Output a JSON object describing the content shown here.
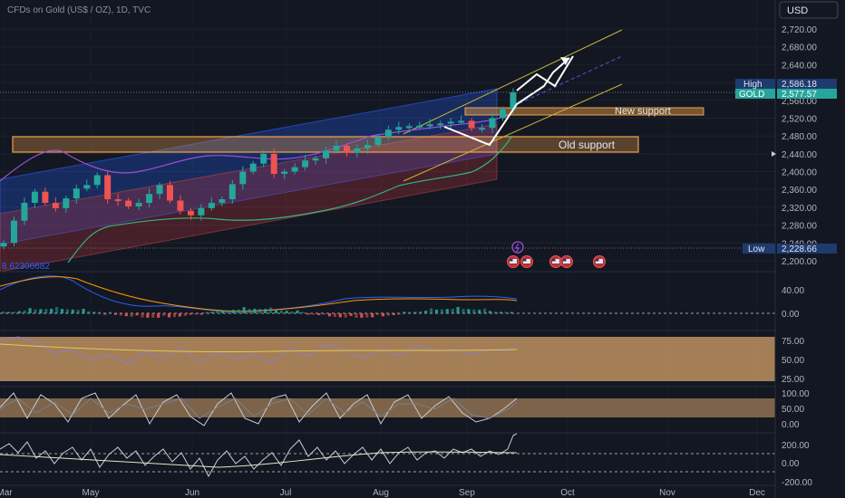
{
  "header": {
    "symbol_title": "CFDs on Gold (US$ / OZ), 1D, TVC",
    "currency_button": "USD"
  },
  "colors": {
    "background": "#131722",
    "up_candle": "#26a69a",
    "down_candle": "#ef5350",
    "blue_channel": "#2962ff",
    "red_channel": "#b2333a",
    "support_zone": "#f0a24a",
    "upper_channel_line": "#c8b436",
    "gold_badge": "#26a69a",
    "high_low_badge": "#1e3a6e",
    "oscillator_band": "#d4a26a"
  },
  "annotations": {
    "new_support": "New support",
    "old_support": "Old support",
    "indicator_value": "8.62306682"
  },
  "price_labels": {
    "high_label": "High",
    "high_value": "2,586.18",
    "gold_label": "GOLD",
    "gold_value": "2,577.57",
    "low_label": "Low",
    "low_value": "2,228.66"
  },
  "icons": {
    "event_badge": "lightning-event-icon",
    "flag_badge": "us-flag-event-icon",
    "arrow_marker": "triangle-right-icon"
  },
  "chart_data": [
    {
      "type": "line",
      "title": "CFDs on Gold (US$ / OZ), 1D, TVC",
      "x_tick_labels": [
        "Mar",
        "May",
        "Jun",
        "Jul",
        "Aug",
        "Sep",
        "Oct",
        "Nov",
        "Dec"
      ],
      "y_tick_labels": [
        "2,720.00",
        "2,680.00",
        "2,640.00",
        "2,600.00",
        "2,560.00",
        "2,520.00",
        "2,480.00",
        "2,440.00",
        "2,400.00",
        "2,360.00",
        "2,320.00",
        "2,280.00",
        "2,240.00",
        "2,200.00"
      ],
      "ylim": [
        2180,
        2740
      ],
      "high": 2586.18,
      "last": 2577.57,
      "low": 2228.66,
      "series": [
        {
          "values": [
            2240,
            2290,
            2330,
            2355,
            2330,
            2318,
            2340,
            2362,
            2370,
            2392,
            2338,
            2335,
            2322,
            2330,
            2350,
            2370,
            2335,
            2312,
            2302,
            2318,
            2330,
            2338,
            2372,
            2400,
            2418,
            2440,
            2395,
            2400,
            2410,
            2425,
            2430,
            2447,
            2458,
            2442,
            2452,
            2460,
            2478,
            2494,
            2500,
            2502,
            2503,
            2506,
            2508,
            2512,
            2514,
            2498,
            2498,
            2520,
            2540,
            2578
          ]
        }
      ]
    },
    {
      "type": "line",
      "y_tick_labels": [
        "40.00",
        "0.00"
      ],
      "ylim": [
        -20,
        60
      ]
    },
    {
      "type": "line",
      "y_tick_labels": [
        "75.00",
        "50.00",
        "25.00"
      ],
      "ylim": [
        0,
        100
      ]
    },
    {
      "type": "line",
      "y_tick_labels": [
        "100.00",
        "50.00",
        "0.00"
      ],
      "ylim": [
        0,
        100
      ]
    },
    {
      "type": "line",
      "y_tick_labels": [
        "200.00",
        "0.00",
        "-200.00"
      ],
      "ylim": [
        -250,
        300
      ]
    }
  ]
}
